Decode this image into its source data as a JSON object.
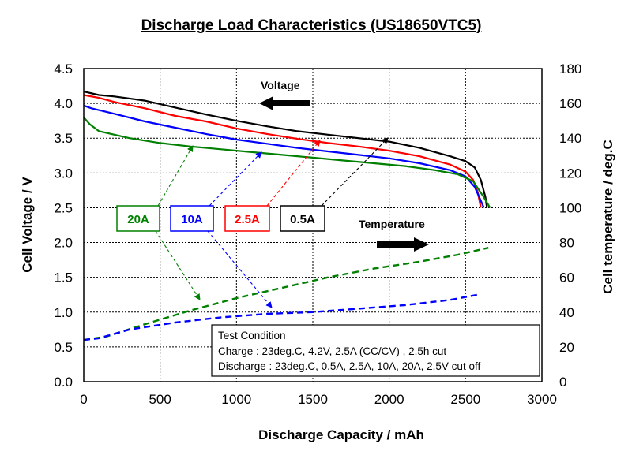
{
  "chart_data": {
    "type": "line",
    "title": "Discharge Load Characteristics (US18650VTC5)",
    "xlabel": "Discharge Capacity / mAh",
    "ylabel_left": "Cell Voltage / V",
    "ylabel_right": "Cell temperature / deg.C",
    "xlim": [
      0,
      3000
    ],
    "ylim_left": [
      0.0,
      4.5
    ],
    "ylim_right": [
      0,
      180
    ],
    "x_ticks": [
      "0",
      "500",
      "1000",
      "1500",
      "2000",
      "2500",
      "3000"
    ],
    "y_left_ticks": [
      "0.0",
      "0.5",
      "1.0",
      "1.5",
      "2.0",
      "2.5",
      "3.0",
      "3.5",
      "4.0",
      "4.5"
    ],
    "y_right_ticks": [
      "0",
      "20",
      "40",
      "60",
      "80",
      "100",
      "120",
      "140",
      "160",
      "180"
    ],
    "grid": true,
    "voltage_series": [
      {
        "name": "0.5A",
        "color": "#000000",
        "points": [
          [
            0,
            4.17
          ],
          [
            100,
            4.12
          ],
          [
            200,
            4.1
          ],
          [
            400,
            4.04
          ],
          [
            600,
            3.94
          ],
          [
            800,
            3.84
          ],
          [
            1000,
            3.75
          ],
          [
            1200,
            3.67
          ],
          [
            1400,
            3.6
          ],
          [
            1600,
            3.55
          ],
          [
            1800,
            3.5
          ],
          [
            2000,
            3.45
          ],
          [
            2200,
            3.36
          ],
          [
            2400,
            3.24
          ],
          [
            2500,
            3.17
          ],
          [
            2560,
            3.08
          ],
          [
            2600,
            2.9
          ],
          [
            2630,
            2.65
          ],
          [
            2640,
            2.5
          ]
        ]
      },
      {
        "name": "2.5A",
        "color": "#ff0000",
        "points": [
          [
            0,
            4.12
          ],
          [
            100,
            4.08
          ],
          [
            200,
            4.02
          ],
          [
            400,
            3.93
          ],
          [
            600,
            3.82
          ],
          [
            800,
            3.74
          ],
          [
            1000,
            3.64
          ],
          [
            1200,
            3.56
          ],
          [
            1400,
            3.49
          ],
          [
            1600,
            3.43
          ],
          [
            1800,
            3.38
          ],
          [
            2000,
            3.32
          ],
          [
            2200,
            3.24
          ],
          [
            2400,
            3.12
          ],
          [
            2500,
            3.02
          ],
          [
            2550,
            2.9
          ],
          [
            2580,
            2.72
          ],
          [
            2600,
            2.5
          ]
        ]
      },
      {
        "name": "10A",
        "color": "#0000ff",
        "points": [
          [
            0,
            3.97
          ],
          [
            50,
            3.93
          ],
          [
            200,
            3.85
          ],
          [
            400,
            3.74
          ],
          [
            600,
            3.65
          ],
          [
            800,
            3.56
          ],
          [
            1000,
            3.48
          ],
          [
            1200,
            3.42
          ],
          [
            1400,
            3.36
          ],
          [
            1600,
            3.31
          ],
          [
            1800,
            3.26
          ],
          [
            2000,
            3.21
          ],
          [
            2200,
            3.14
          ],
          [
            2400,
            3.04
          ],
          [
            2500,
            2.95
          ],
          [
            2560,
            2.8
          ],
          [
            2600,
            2.6
          ],
          [
            2620,
            2.5
          ]
        ]
      },
      {
        "name": "20A",
        "color": "#008000",
        "points": [
          [
            0,
            3.8
          ],
          [
            40,
            3.7
          ],
          [
            100,
            3.6
          ],
          [
            300,
            3.5
          ],
          [
            500,
            3.43
          ],
          [
            700,
            3.38
          ],
          [
            900,
            3.34
          ],
          [
            1100,
            3.3
          ],
          [
            1300,
            3.26
          ],
          [
            1500,
            3.22
          ],
          [
            1700,
            3.18
          ],
          [
            1900,
            3.14
          ],
          [
            2100,
            3.1
          ],
          [
            2300,
            3.04
          ],
          [
            2450,
            2.98
          ],
          [
            2550,
            2.88
          ],
          [
            2620,
            2.65
          ],
          [
            2660,
            2.5
          ]
        ]
      }
    ],
    "temperature_series": [
      {
        "name": "20A",
        "color": "#008000",
        "points": [
          [
            0,
            24
          ],
          [
            150,
            26
          ],
          [
            400,
            33
          ],
          [
            700,
            41
          ],
          [
            1000,
            48
          ],
          [
            1300,
            54
          ],
          [
            1600,
            60
          ],
          [
            1900,
            65
          ],
          [
            2200,
            69
          ],
          [
            2450,
            73
          ],
          [
            2650,
            77
          ]
        ]
      },
      {
        "name": "10A",
        "color": "#0000ff",
        "points": [
          [
            0,
            24
          ],
          [
            100,
            25
          ],
          [
            300,
            30
          ],
          [
            600,
            34
          ],
          [
            900,
            37
          ],
          [
            1200,
            39
          ],
          [
            1500,
            40
          ],
          [
            1800,
            42
          ],
          [
            2100,
            44
          ],
          [
            2400,
            47
          ],
          [
            2580,
            50
          ]
        ]
      }
    ],
    "annotations": {
      "voltage_label": "Voltage",
      "temperature_label": "Temperature",
      "legend_boxes": [
        "20A",
        "10A",
        "2.5A",
        "0.5A"
      ],
      "test_condition": {
        "heading": "Test Condition",
        "charge": "Charge : 23deg.C, 4.2V, 2.5A (CC/CV) , 2.5h cut",
        "discharge": "Discharge : 23deg.C, 0.5A, 2.5A, 10A, 20A, 2.5V cut off"
      }
    }
  }
}
